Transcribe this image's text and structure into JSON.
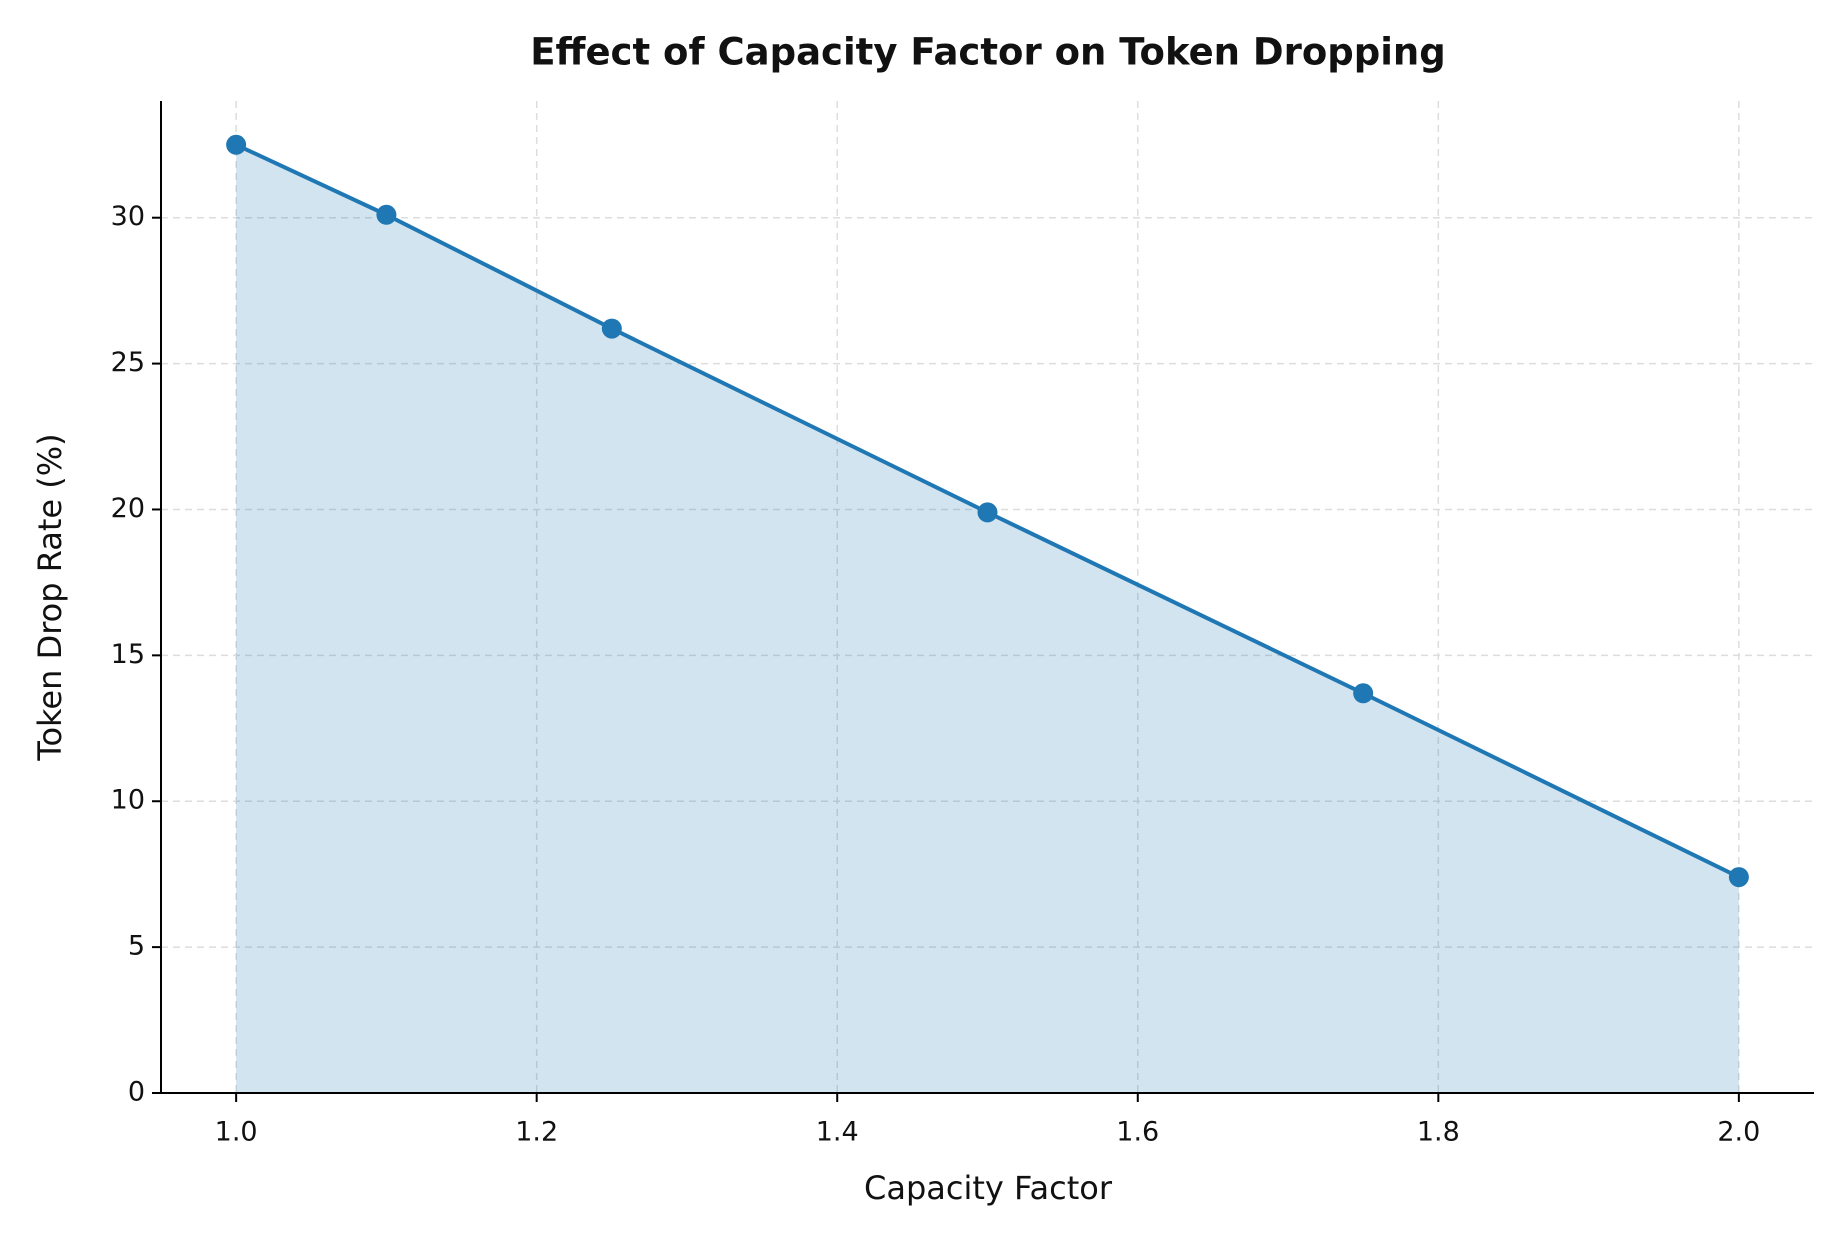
{
  "chart_data": {
    "type": "area-line",
    "title": "Effect of Capacity Factor on Token Dropping",
    "x_label": "Capacity Factor",
    "y_label": "Token Drop Rate (%)",
    "x": [
      1.0,
      1.1,
      1.25,
      1.5,
      1.75,
      2.0
    ],
    "series": [
      {
        "name": "Token Drop Rate",
        "color": "#1f77b4",
        "values": [
          32.5,
          30.1,
          26.2,
          19.9,
          13.7,
          7.4
        ]
      }
    ],
    "xlim": [
      0.95,
      2.05
    ],
    "ylim": [
      0,
      34
    ],
    "xticks": [
      {
        "value": 1.0,
        "label": "1.0"
      },
      1.2,
      1.4,
      1.6,
      1.8,
      {
        "value": 2.0,
        "label": "2.0"
      }
    ],
    "yticks": [
      0,
      5,
      10,
      15,
      20,
      25,
      30
    ],
    "grid": true
  }
}
